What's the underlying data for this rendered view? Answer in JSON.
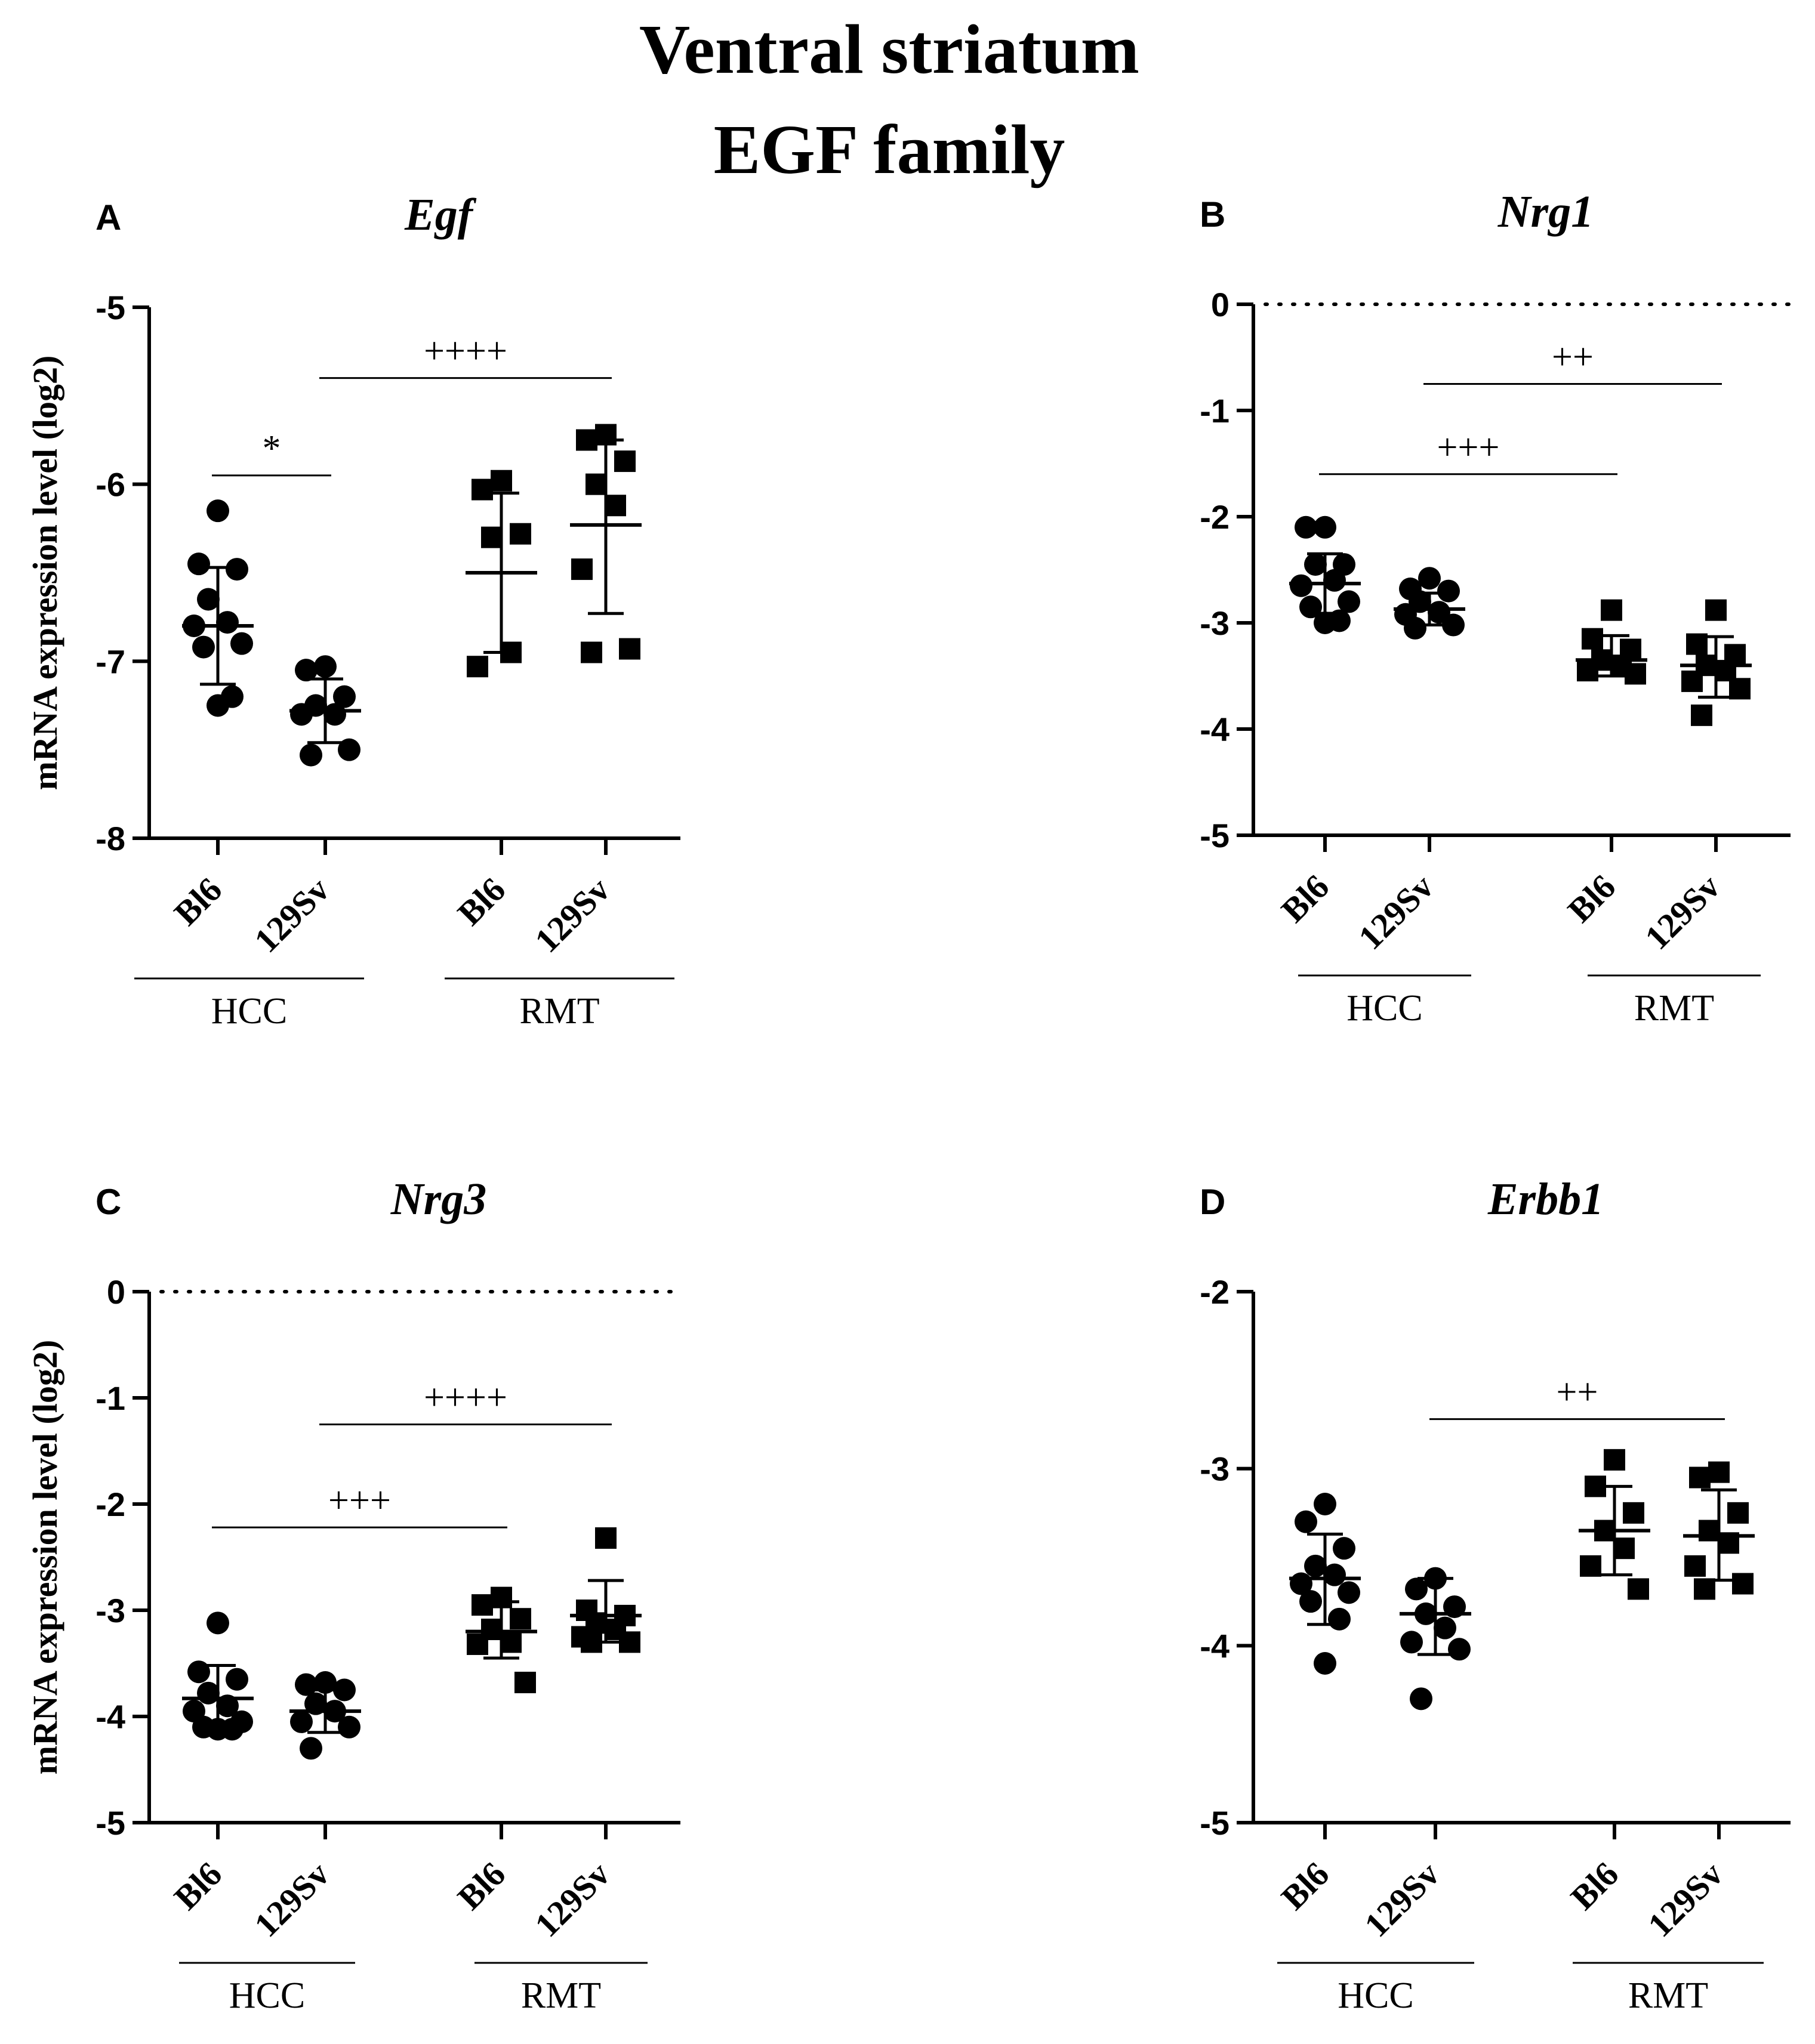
{
  "figure": {
    "title": "Ventral striatum",
    "subtitle": "EGF family"
  },
  "chart_data": [
    {
      "panel": "A",
      "type": "scatter",
      "title": "Egf",
      "ylabel": "mRNA expression level (log2)",
      "ylim": [
        -8,
        -5
      ],
      "yticks": [
        "-5",
        "-6",
        "-7",
        "-8"
      ],
      "ytick_values": [
        -5,
        -6,
        -7,
        -8
      ],
      "zero_line": false,
      "categories": [
        "Bl6",
        "129Sv",
        "Bl6",
        "129Sv"
      ],
      "groups": [
        {
          "label": "HCC",
          "categories": [
            0,
            1
          ]
        },
        {
          "label": "RMT",
          "categories": [
            2,
            3
          ]
        }
      ],
      "series": [
        {
          "category": "Bl6",
          "group": "HCC",
          "marker": "circle",
          "mean": -6.8,
          "sd_upper": -6.47,
          "sd_lower": -7.13,
          "points": [
            -6.15,
            -6.45,
            -6.48,
            -6.65,
            -6.78,
            -6.8,
            -6.9,
            -6.92,
            -7.2,
            -7.25
          ]
        },
        {
          "category": "129Sv",
          "group": "HCC",
          "marker": "circle",
          "mean": -7.28,
          "sd_upper": -7.1,
          "sd_lower": -7.46,
          "points": [
            -7.03,
            -7.05,
            -7.2,
            -7.25,
            -7.3,
            -7.3,
            -7.5,
            -7.53
          ]
        },
        {
          "category": "Bl6",
          "group": "RMT",
          "marker": "square",
          "mean": -6.5,
          "sd_upper": -6.05,
          "sd_lower": -6.95,
          "points": [
            -5.98,
            -6.03,
            -6.28,
            -6.3,
            -6.95,
            -7.03
          ]
        },
        {
          "category": "129Sv",
          "group": "RMT",
          "marker": "square",
          "mean": -6.23,
          "sd_upper": -5.75,
          "sd_lower": -6.73,
          "points": [
            -5.72,
            -5.75,
            -5.87,
            -6.0,
            -6.12,
            -6.48,
            -6.93,
            -6.95
          ]
        }
      ],
      "comparisons": [
        {
          "from": 0,
          "to": 1,
          "label": "*",
          "y": -5.95
        },
        {
          "from": 1,
          "to": 3,
          "label": "++++",
          "y": -5.4
        }
      ]
    },
    {
      "panel": "B",
      "type": "scatter",
      "title": "Nrg1",
      "ylabel": "",
      "ylim": [
        -5,
        0
      ],
      "yticks": [
        "0",
        "-1",
        "-2",
        "-3",
        "-4",
        "-5"
      ],
      "ytick_values": [
        0,
        -1,
        -2,
        -3,
        -4,
        -5
      ],
      "zero_line": true,
      "categories": [
        "Bl6",
        "129Sv",
        "Bl6",
        "129Sv"
      ],
      "groups": [
        {
          "label": "HCC",
          "categories": [
            0,
            1
          ]
        },
        {
          "label": "RMT",
          "categories": [
            2,
            3
          ]
        }
      ],
      "series": [
        {
          "category": "Bl6",
          "group": "HCC",
          "marker": "circle",
          "mean": -2.63,
          "sd_upper": -2.35,
          "sd_lower": -2.91,
          "points": [
            -2.1,
            -2.1,
            -2.45,
            -2.45,
            -2.6,
            -2.65,
            -2.8,
            -2.85,
            -2.98,
            -3.0
          ]
        },
        {
          "category": "129Sv",
          "group": "HCC",
          "marker": "circle",
          "mean": -2.87,
          "sd_upper": -2.72,
          "sd_lower": -3.02,
          "points": [
            -2.58,
            -2.68,
            -2.7,
            -2.8,
            -2.9,
            -2.92,
            -3.02,
            -3.05
          ]
        },
        {
          "category": "Bl6",
          "group": "RMT",
          "marker": "square",
          "mean": -3.35,
          "sd_upper": -3.12,
          "sd_lower": -3.5,
          "points": [
            -2.88,
            -3.15,
            -3.25,
            -3.35,
            -3.4,
            -3.45,
            -3.48
          ]
        },
        {
          "category": "129Sv",
          "group": "RMT",
          "marker": "square",
          "mean": -3.4,
          "sd_upper": -3.13,
          "sd_lower": -3.7,
          "points": [
            -2.88,
            -3.2,
            -3.3,
            -3.4,
            -3.45,
            -3.55,
            -3.62,
            -3.87
          ]
        }
      ],
      "comparisons": [
        {
          "from": 1,
          "to": 3,
          "label": "++",
          "y": -0.75
        },
        {
          "from": 0,
          "to": 2,
          "label": "+++",
          "y": -1.6
        }
      ]
    },
    {
      "panel": "C",
      "type": "scatter",
      "title": "Nrg3",
      "ylabel": "mRNA expression level (log2)",
      "ylim": [
        -5,
        0
      ],
      "yticks": [
        "0",
        "-1",
        "-2",
        "-3",
        "-4",
        "-5"
      ],
      "ytick_values": [
        0,
        -1,
        -2,
        -3,
        -4,
        -5
      ],
      "zero_line": true,
      "categories": [
        "Bl6",
        "129Sv",
        "Bl6",
        "129Sv"
      ],
      "groups": [
        {
          "label": "HCC",
          "categories": [
            0,
            1
          ]
        },
        {
          "label": "RMT",
          "categories": [
            2,
            3
          ]
        }
      ],
      "series": [
        {
          "category": "Bl6",
          "group": "HCC",
          "marker": "circle",
          "mean": -3.83,
          "sd_upper": -3.52,
          "sd_lower": -4.14,
          "points": [
            -3.12,
            -3.58,
            -3.65,
            -3.78,
            -3.9,
            -3.95,
            -4.05,
            -4.1,
            -4.12,
            -4.12
          ]
        },
        {
          "category": "129Sv",
          "group": "HCC",
          "marker": "circle",
          "mean": -3.95,
          "sd_upper": -3.75,
          "sd_lower": -4.15,
          "points": [
            -3.68,
            -3.7,
            -3.75,
            -3.88,
            -3.95,
            -4.05,
            -4.1,
            -4.3
          ]
        },
        {
          "category": "Bl6",
          "group": "RMT",
          "marker": "square",
          "mean": -3.2,
          "sd_upper": -2.92,
          "sd_lower": -3.45,
          "points": [
            -2.88,
            -2.95,
            -3.08,
            -3.18,
            -3.3,
            -3.32,
            -3.68
          ]
        },
        {
          "category": "129Sv",
          "group": "RMT",
          "marker": "square",
          "mean": -3.05,
          "sd_upper": -2.72,
          "sd_lower": -3.3,
          "points": [
            -2.32,
            -3.0,
            -3.05,
            -3.12,
            -3.18,
            -3.25,
            -3.3,
            -3.3
          ]
        }
      ],
      "comparisons": [
        {
          "from": 1,
          "to": 3,
          "label": "++++",
          "y": -1.25
        },
        {
          "from": 0,
          "to": 2,
          "label": "+++",
          "y": -2.22
        }
      ]
    },
    {
      "panel": "D",
      "type": "scatter",
      "title": "Erbb1",
      "ylabel": "",
      "ylim": [
        -5,
        -2
      ],
      "yticks": [
        "-2",
        "-3",
        "-4",
        "-5"
      ],
      "ytick_values": [
        -2,
        -3,
        -4,
        -5
      ],
      "zero_line": false,
      "categories": [
        "Bl6",
        "129Sv",
        "Bl6",
        "129Sv"
      ],
      "groups": [
        {
          "label": "HCC",
          "categories": [
            0,
            1
          ]
        },
        {
          "label": "RMT",
          "categories": [
            2,
            3
          ]
        }
      ],
      "series": [
        {
          "category": "Bl6",
          "group": "HCC",
          "marker": "circle",
          "mean": -3.62,
          "sd_upper": -3.37,
          "sd_lower": -3.88,
          "points": [
            -3.2,
            -3.3,
            -3.45,
            -3.55,
            -3.6,
            -3.65,
            -3.7,
            -3.75,
            -3.85,
            -4.1
          ]
        },
        {
          "category": "129Sv",
          "group": "HCC",
          "marker": "circle",
          "mean": -3.82,
          "sd_upper": -3.62,
          "sd_lower": -4.05,
          "points": [
            -3.62,
            -3.68,
            -3.78,
            -3.82,
            -3.9,
            -3.98,
            -4.02,
            -4.3
          ]
        },
        {
          "category": "Bl6",
          "group": "RMT",
          "marker": "square",
          "mean": -3.35,
          "sd_upper": -3.1,
          "sd_lower": -3.6,
          "points": [
            -2.95,
            -3.1,
            -3.25,
            -3.35,
            -3.45,
            -3.55,
            -3.68
          ]
        },
        {
          "category": "129Sv",
          "group": "RMT",
          "marker": "square",
          "mean": -3.38,
          "sd_upper": -3.12,
          "sd_lower": -3.63,
          "points": [
            -3.02,
            -3.05,
            -3.25,
            -3.35,
            -3.42,
            -3.55,
            -3.65,
            -3.68
          ]
        }
      ],
      "comparisons": [
        {
          "from": 1,
          "to": 3,
          "label": "++",
          "y": -2.72
        }
      ]
    }
  ]
}
